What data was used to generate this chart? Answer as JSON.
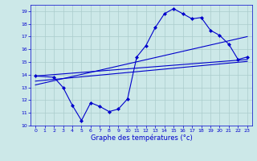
{
  "title": "Graphe des températures (°c)",
  "bg_color": "#cce8e8",
  "grid_color": "#aacccc",
  "line_color": "#0000cc",
  "marker": "D",
  "marker_size": 2.0,
  "xlim": [
    -0.5,
    23.5
  ],
  "ylim": [
    10,
    19.5
  ],
  "xticks": [
    0,
    1,
    2,
    3,
    4,
    5,
    6,
    7,
    8,
    9,
    10,
    11,
    12,
    13,
    14,
    15,
    16,
    17,
    18,
    19,
    20,
    21,
    22,
    23
  ],
  "yticks": [
    10,
    11,
    12,
    13,
    14,
    15,
    16,
    17,
    18,
    19
  ],
  "curve_x": [
    0,
    2,
    3,
    4,
    5,
    6,
    7,
    8,
    9,
    10,
    11,
    12,
    13,
    14,
    15,
    16,
    17,
    18,
    19,
    20,
    21,
    22,
    23
  ],
  "curve_y": [
    13.9,
    13.8,
    13.0,
    11.6,
    10.4,
    11.8,
    11.5,
    11.1,
    11.3,
    12.1,
    15.4,
    16.3,
    17.7,
    18.8,
    19.2,
    18.8,
    18.4,
    18.5,
    17.5,
    17.1,
    16.4,
    15.2,
    15.4
  ],
  "line1_x": [
    0,
    23
  ],
  "line1_y": [
    13.9,
    15.2
  ],
  "line2_x": [
    0,
    23
  ],
  "line2_y": [
    13.5,
    15.05
  ],
  "line3_x": [
    0,
    23
  ],
  "line3_y": [
    13.2,
    17.0
  ]
}
